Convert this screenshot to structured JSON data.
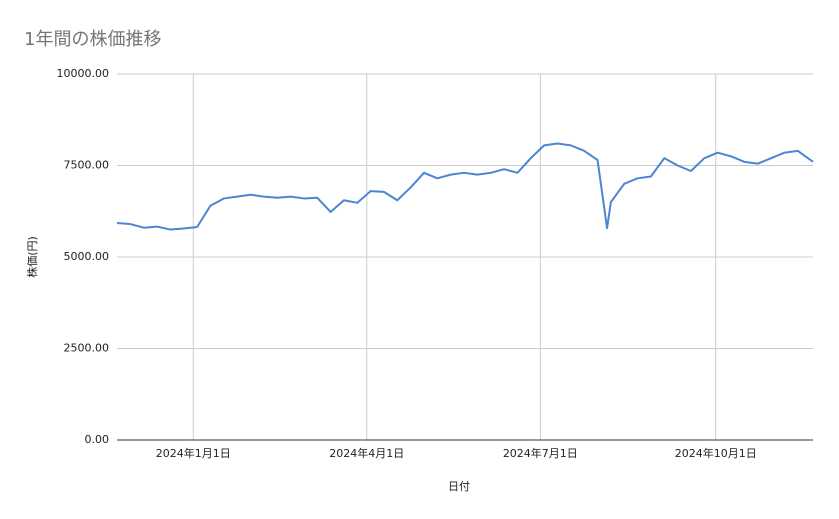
{
  "chart_data": {
    "type": "line",
    "title": "1年間の株価推移",
    "x_label": "日付",
    "y_label": "株価(円)",
    "x": [
      "2023-11-22",
      "2023-11-29",
      "2023-12-06",
      "2023-12-13",
      "2023-12-20",
      "2023-12-27",
      "2024-01-03",
      "2024-01-10",
      "2024-01-17",
      "2024-01-24",
      "2024-01-31",
      "2024-02-07",
      "2024-02-14",
      "2024-02-21",
      "2024-02-28",
      "2024-03-06",
      "2024-03-13",
      "2024-03-20",
      "2024-03-27",
      "2024-04-03",
      "2024-04-10",
      "2024-04-17",
      "2024-04-24",
      "2024-05-01",
      "2024-05-08",
      "2024-05-15",
      "2024-05-22",
      "2024-05-29",
      "2024-06-05",
      "2024-06-12",
      "2024-06-19",
      "2024-06-26",
      "2024-07-03",
      "2024-07-10",
      "2024-07-17",
      "2024-07-24",
      "2024-07-31",
      "2024-08-05",
      "2024-08-07",
      "2024-08-14",
      "2024-08-21",
      "2024-08-28",
      "2024-09-04",
      "2024-09-11",
      "2024-09-18",
      "2024-09-25",
      "2024-10-02",
      "2024-10-09",
      "2024-10-16",
      "2024-10-23",
      "2024-10-30",
      "2024-11-06",
      "2024-11-13",
      "2024-11-21"
    ],
    "series": [
      {
        "name": "株価",
        "color": "#4a86d4",
        "values": [
          5930,
          5900,
          5800,
          5830,
          5750,
          5780,
          5820,
          6400,
          6600,
          6650,
          6700,
          6650,
          6620,
          6650,
          6600,
          6620,
          6230,
          6550,
          6480,
          6800,
          6780,
          6550,
          6900,
          7300,
          7150,
          7250,
          7300,
          7250,
          7300,
          7400,
          7300,
          7700,
          8050,
          8100,
          8050,
          7900,
          7650,
          5790,
          6500,
          7000,
          7150,
          7200,
          7700,
          7500,
          7350,
          7700,
          7850,
          7750,
          7600,
          7550,
          7700,
          7850,
          7900,
          7600
        ]
      }
    ],
    "xlim": [
      "2023-11-22",
      "2024-11-21"
    ],
    "xticks": [
      {
        "value": "2024-01-01",
        "label": "2024年1月1日"
      },
      {
        "value": "2024-04-01",
        "label": "2024年4月1日"
      },
      {
        "value": "2024-07-01",
        "label": "2024年7月1日"
      },
      {
        "value": "2024-10-01",
        "label": "2024年10月1日"
      }
    ],
    "ylim": [
      0,
      10000
    ],
    "yticks": [
      {
        "value": 0,
        "label": "0.00"
      },
      {
        "value": 2500,
        "label": "2500.00"
      },
      {
        "value": 5000,
        "label": "5000.00"
      },
      {
        "value": 7500,
        "label": "7500.00"
      },
      {
        "value": 10000,
        "label": "10000.00"
      }
    ],
    "grid": true
  }
}
